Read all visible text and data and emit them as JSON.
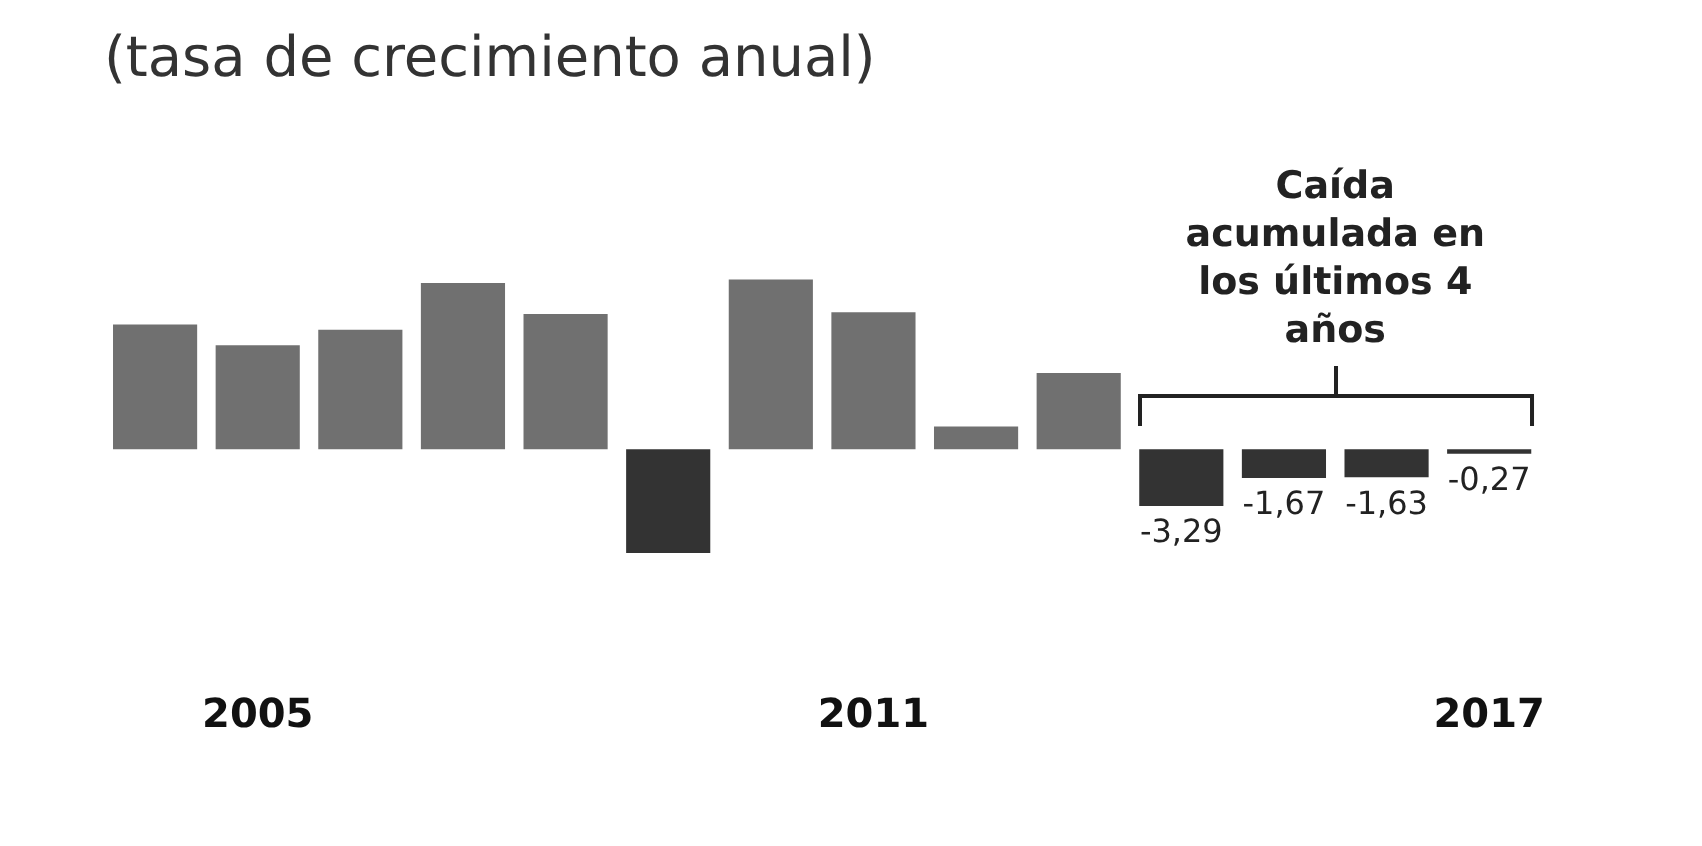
{
  "chart_data": {
    "type": "bar",
    "title": "(tasa de crecimiento anual)",
    "categories": [
      null,
      "2005",
      null,
      null,
      null,
      null,
      null,
      "2011",
      null,
      null,
      null,
      null,
      null,
      "2017"
    ],
    "values": [
      7.2,
      6.0,
      6.9,
      9.6,
      7.8,
      -6.0,
      9.8,
      7.9,
      1.3,
      4.4,
      -3.29,
      -1.67,
      -1.63,
      -0.27
    ],
    "colors": [
      "#707070",
      "#707070",
      "#707070",
      "#707070",
      "#707070",
      "#333333",
      "#707070",
      "#707070",
      "#707070",
      "#707070",
      "#333333",
      "#333333",
      "#333333",
      "#333333"
    ],
    "value_labels": [
      null,
      null,
      null,
      null,
      null,
      null,
      null,
      null,
      null,
      null,
      "-3,29",
      "-1,67",
      "-1,63",
      "-0,27"
    ],
    "annotations": [
      "Caída acumulada en los últimos 4 años"
    ],
    "grid": false,
    "legend": false
  }
}
